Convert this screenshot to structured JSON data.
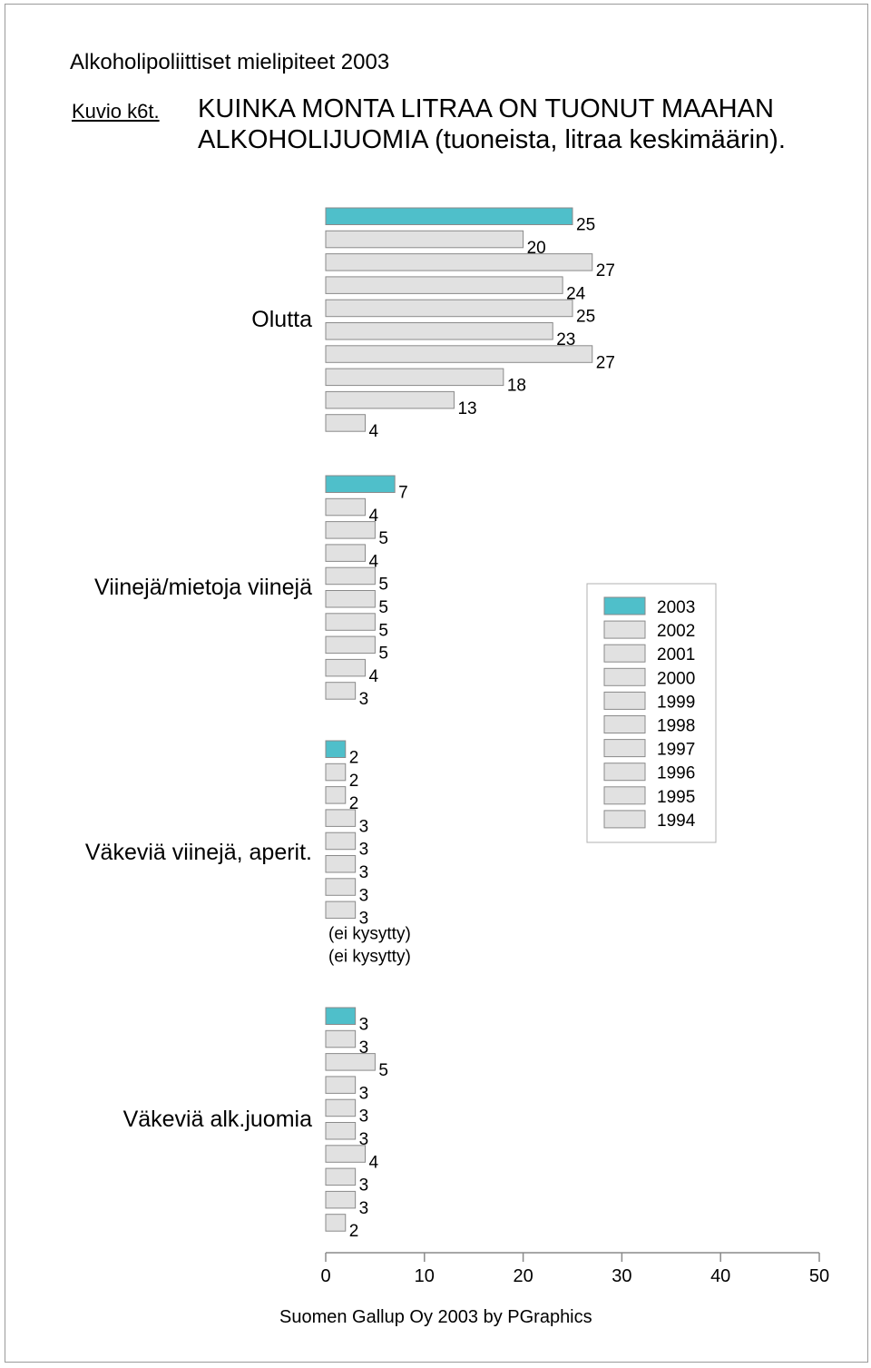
{
  "header": {
    "title": "Alkoholipoliittiset mielipiteet 2003",
    "figure_label": "Kuvio k6t.",
    "figure_title_line1": "KUINKA MONTA LITRAA ON TUONUT MAAHAN",
    "figure_title_line2": "ALKOHOLIJUOMIA (tuoneista, litraa keskimäärin)."
  },
  "footer": {
    "credit": "Suomen Gallup Oy 2003 by PGraphics"
  },
  "colors": {
    "highlight": "#4fbfca",
    "bar": "#e1e1e1",
    "bar_border": "#8a8a8a",
    "axis": "#8a8a8a"
  },
  "chart_data": {
    "type": "bar",
    "orientation": "horizontal",
    "xlim": [
      0,
      50
    ],
    "x_ticks": [
      0,
      10,
      20,
      30,
      40,
      50
    ],
    "series_names": [
      "2003",
      "2002",
      "2001",
      "2000",
      "1999",
      "1998",
      "1997",
      "1996",
      "1995",
      "1994"
    ],
    "legend_position": "right",
    "groups": [
      {
        "category": "Olutta",
        "values": [
          25,
          20,
          27,
          24,
          25,
          23,
          27,
          18,
          13,
          4
        ]
      },
      {
        "category": "Viinejä/mietoja viinejä",
        "values": [
          7,
          4,
          5,
          4,
          5,
          5,
          5,
          5,
          4,
          3
        ]
      },
      {
        "category": "Väkeviä viinejä, aperit.",
        "values": [
          2,
          2,
          2,
          3,
          3,
          3,
          3,
          3,
          null,
          null
        ],
        "missing_label": "(ei kysytty)"
      },
      {
        "category": "Väkeviä alk.juomia",
        "values": [
          3,
          3,
          5,
          3,
          3,
          3,
          4,
          3,
          3,
          2
        ]
      }
    ]
  }
}
